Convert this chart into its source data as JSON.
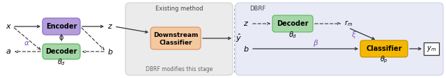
{
  "bg_color": "#ffffff",
  "panel_left_bg": "#ebebeb",
  "panel_right_bg": "#e8eaf6",
  "encoder_color": "#b39ddb",
  "encoder_ec": "#9575cd",
  "decoder_left_color": "#a5d6a7",
  "decoder_left_ec": "#66bb6a",
  "downstream_color": "#f5c9a0",
  "downstream_ec": "#e0956a",
  "classifier_color": "#f5b800",
  "classifier_ec": "#c89000",
  "decoder_right_color": "#a5d6a7",
  "decoder_right_ec": "#66bb6a",
  "panel_left_title": "Existing method",
  "panel_right_title": "DBRF",
  "panel_left_note": "DBRF modifies this stage",
  "encoder_label": "Encoder",
  "encoder_sub": "ϕ",
  "decoder_left_label": "Decoder",
  "decoder_left_sub": "θd",
  "downstream_label": "Downstream\nClassifier",
  "decoder_right_label": "Decoder",
  "decoder_right_sub": "θd",
  "classifier_label": "Classifier",
  "classifier_sub": "θp",
  "x_label": "x",
  "a_label": "a",
  "z_label1": "z",
  "b_label1": "b",
  "yhat_label": "ŷ",
  "z_label2": "z",
  "b_label2": "b",
  "rm_label": "rm",
  "ym_label": "ym",
  "alpha_label": "α",
  "beta_label": "β",
  "xi_label": "ξ",
  "arrow_color": "#333333",
  "purple_color": "#8855bb",
  "text_color": "#444444"
}
